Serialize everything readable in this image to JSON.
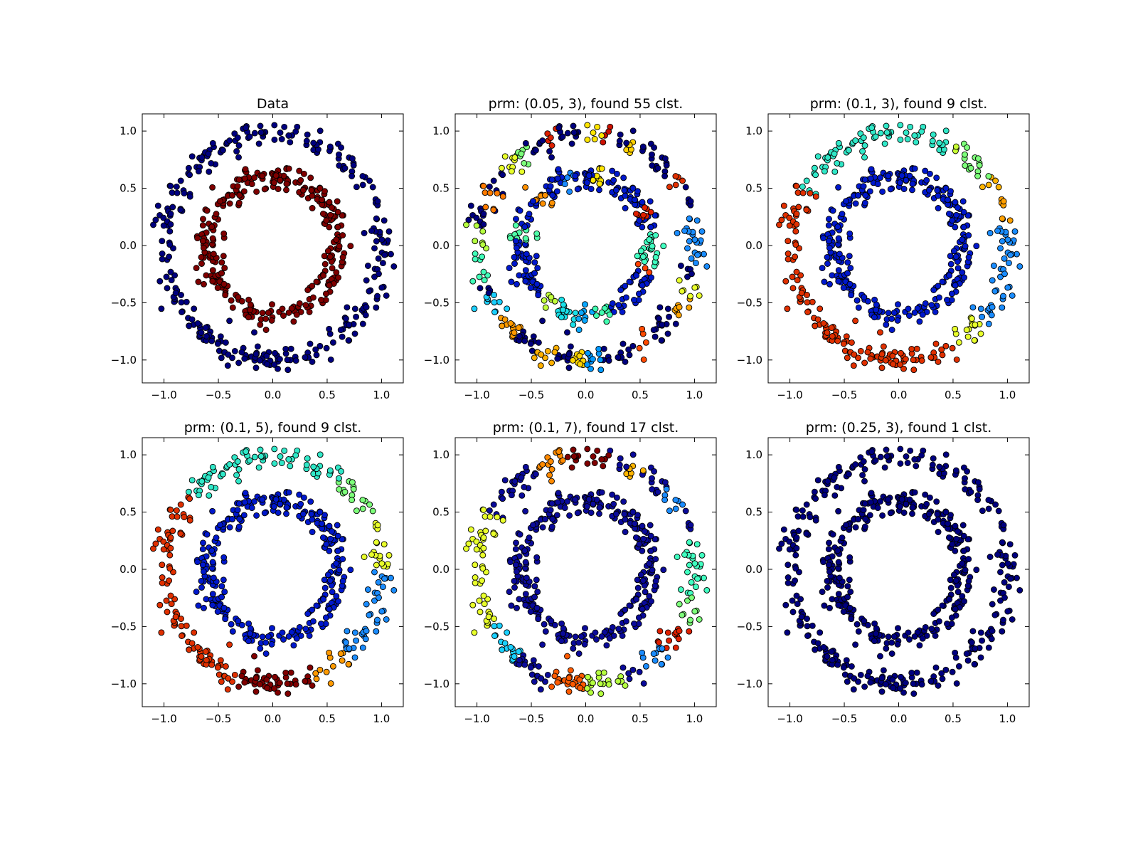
{
  "figure": {
    "dataset": "two concentric noisy circles, 600 points (300 outer ring radius 1.0, 300 inner ring radius 0.6)"
  },
  "chart_data": [
    {
      "type": "scatter",
      "title": "Data",
      "xlim": [
        -1.2,
        1.2
      ],
      "ylim": [
        -1.2,
        1.15
      ],
      "xticks": [
        -1.0,
        -0.5,
        0.0,
        0.5,
        1.0
      ],
      "yticks": [
        -1.0,
        -0.5,
        0.0,
        0.5,
        1.0
      ],
      "xtick_labels": [
        "−1.0",
        "−0.5",
        "0.0",
        "0.5",
        "1.0"
      ],
      "ytick_labels": [
        "−1.0",
        "−0.5",
        "0.0",
        "0.5",
        "1.0"
      ],
      "series": [
        {
          "name": "outer ring",
          "radius": 1.0,
          "n": 300,
          "color": "#00007f",
          "segments": [
            {
              "from_deg": 0,
              "to_deg": 360,
              "color": "#00007f"
            }
          ]
        },
        {
          "name": "inner ring",
          "radius": 0.6,
          "n": 300,
          "color": "#7f0000",
          "segments": [
            {
              "from_deg": 0,
              "to_deg": 360,
              "color": "#7f0000"
            }
          ]
        }
      ]
    },
    {
      "type": "scatter",
      "title": "prm: (0.05, 3), found 55 clst.",
      "xlim": [
        -1.2,
        1.2
      ],
      "ylim": [
        -1.2,
        1.15
      ],
      "xticks": [
        -1.0,
        -0.5,
        0.0,
        0.5,
        1.0
      ],
      "yticks": [
        -1.0,
        -0.5,
        0.0,
        0.5,
        1.0
      ],
      "xtick_labels": [
        "−1.0",
        "−0.5",
        "0.0",
        "0.5",
        "1.0"
      ],
      "ytick_labels": [
        "−1.0",
        "−0.5",
        "0.0",
        "0.5",
        "1.0"
      ],
      "series": [
        {
          "name": "outer ring",
          "radius": 1.0,
          "n": 300,
          "color": "#00007f",
          "segments": [
            {
              "from_deg": 0,
              "to_deg": 14,
              "color": "#1a8cff"
            },
            {
              "from_deg": 14,
              "to_deg": 30,
              "color": "#00007f"
            },
            {
              "from_deg": 30,
              "to_deg": 38,
              "color": "#e03000"
            },
            {
              "from_deg": 38,
              "to_deg": 60,
              "color": "#00007f"
            },
            {
              "from_deg": 60,
              "to_deg": 66,
              "color": "#ffd000"
            },
            {
              "from_deg": 66,
              "to_deg": 74,
              "color": "#00007f"
            },
            {
              "from_deg": 74,
              "to_deg": 80,
              "color": "#cc1000"
            },
            {
              "from_deg": 80,
              "to_deg": 92,
              "color": "#ffe600"
            },
            {
              "from_deg": 92,
              "to_deg": 104,
              "color": "#00007f"
            },
            {
              "from_deg": 104,
              "to_deg": 112,
              "color": "#dd2000"
            },
            {
              "from_deg": 112,
              "to_deg": 122,
              "color": "#00007f"
            },
            {
              "from_deg": 122,
              "to_deg": 130,
              "color": "#7dff7a"
            },
            {
              "from_deg": 130,
              "to_deg": 140,
              "color": "#e8ff2a"
            },
            {
              "from_deg": 140,
              "to_deg": 150,
              "color": "#00007f"
            },
            {
              "from_deg": 150,
              "to_deg": 160,
              "color": "#ff7a00"
            },
            {
              "from_deg": 160,
              "to_deg": 170,
              "color": "#00007f"
            },
            {
              "from_deg": 170,
              "to_deg": 182,
              "color": "#b5ff40"
            },
            {
              "from_deg": 182,
              "to_deg": 198,
              "color": "#40ffb8"
            },
            {
              "from_deg": 198,
              "to_deg": 206,
              "color": "#00007f"
            },
            {
              "from_deg": 206,
              "to_deg": 218,
              "color": "#1ad0ff"
            },
            {
              "from_deg": 218,
              "to_deg": 232,
              "color": "#ff9a00"
            },
            {
              "from_deg": 232,
              "to_deg": 244,
              "color": "#00007f"
            },
            {
              "from_deg": 244,
              "to_deg": 254,
              "color": "#ffb000"
            },
            {
              "from_deg": 254,
              "to_deg": 262,
              "color": "#00007f"
            },
            {
              "from_deg": 262,
              "to_deg": 270,
              "color": "#ffd500"
            },
            {
              "from_deg": 270,
              "to_deg": 278,
              "color": "#0098ff"
            },
            {
              "from_deg": 278,
              "to_deg": 298,
              "color": "#00007f"
            },
            {
              "from_deg": 298,
              "to_deg": 308,
              "color": "#ff4a00"
            },
            {
              "from_deg": 308,
              "to_deg": 324,
              "color": "#00007f"
            },
            {
              "from_deg": 324,
              "to_deg": 334,
              "color": "#ffa500"
            },
            {
              "from_deg": 334,
              "to_deg": 342,
              "color": "#e8ff2a"
            },
            {
              "from_deg": 342,
              "to_deg": 350,
              "color": "#00007f"
            },
            {
              "from_deg": 350,
              "to_deg": 360,
              "color": "#1a8cff"
            }
          ]
        },
        {
          "name": "inner ring",
          "radius": 0.6,
          "n": 300,
          "color": "#0018cc",
          "segments": [
            {
              "from_deg": 0,
              "to_deg": 10,
              "color": "#40ffc0"
            },
            {
              "from_deg": 10,
              "to_deg": 24,
              "color": "#0018cc"
            },
            {
              "from_deg": 24,
              "to_deg": 32,
              "color": "#e02000"
            },
            {
              "from_deg": 32,
              "to_deg": 76,
              "color": "#0018cc"
            },
            {
              "from_deg": 76,
              "to_deg": 84,
              "color": "#ffe600"
            },
            {
              "from_deg": 84,
              "to_deg": 100,
              "color": "#0018cc"
            },
            {
              "from_deg": 100,
              "to_deg": 110,
              "color": "#1a8cff"
            },
            {
              "from_deg": 110,
              "to_deg": 126,
              "color": "#0018cc"
            },
            {
              "from_deg": 126,
              "to_deg": 140,
              "color": "#ff9000"
            },
            {
              "from_deg": 140,
              "to_deg": 164,
              "color": "#0018cc"
            },
            {
              "from_deg": 164,
              "to_deg": 176,
              "color": "#50ffa8"
            },
            {
              "from_deg": 176,
              "to_deg": 226,
              "color": "#0018cc"
            },
            {
              "from_deg": 226,
              "to_deg": 240,
              "color": "#c0ff3a"
            },
            {
              "from_deg": 240,
              "to_deg": 262,
              "color": "#1ae0e8"
            },
            {
              "from_deg": 262,
              "to_deg": 278,
              "color": "#0aa8ff"
            },
            {
              "from_deg": 278,
              "to_deg": 292,
              "color": "#40ffb0"
            },
            {
              "from_deg": 292,
              "to_deg": 336,
              "color": "#0018cc"
            },
            {
              "from_deg": 336,
              "to_deg": 344,
              "color": "#ff4000"
            },
            {
              "from_deg": 344,
              "to_deg": 360,
              "color": "#40ffc0"
            }
          ]
        }
      ]
    },
    {
      "type": "scatter",
      "title": "prm: (0.1, 3), found 9 clst.",
      "xlim": [
        -1.2,
        1.2
      ],
      "ylim": [
        -1.2,
        1.15
      ],
      "xticks": [
        -1.0,
        -0.5,
        0.0,
        0.5,
        1.0
      ],
      "yticks": [
        -1.0,
        -0.5,
        0.0,
        0.5,
        1.0
      ],
      "xtick_labels": [
        "−1.0",
        "−0.5",
        "0.0",
        "0.5",
        "1.0"
      ],
      "ytick_labels": [
        "−1.0",
        "−0.5",
        "0.0",
        "0.5",
        "1.0"
      ],
      "series": [
        {
          "name": "outer ring",
          "radius": 1.0,
          "n": 300,
          "color": "#1a8cff",
          "segments": [
            {
              "from_deg": 0,
              "to_deg": 12,
              "color": "#1a8cff"
            },
            {
              "from_deg": 12,
              "to_deg": 24,
              "color": "#ffa000"
            },
            {
              "from_deg": 24,
              "to_deg": 36,
              "color": "#ffb400"
            },
            {
              "from_deg": 36,
              "to_deg": 56,
              "color": "#7dff7a"
            },
            {
              "from_deg": 56,
              "to_deg": 62,
              "color": "#c8ff34"
            },
            {
              "from_deg": 62,
              "to_deg": 150,
              "color": "#30e8c8"
            },
            {
              "from_deg": 150,
              "to_deg": 302,
              "color": "#e03000"
            },
            {
              "from_deg": 302,
              "to_deg": 318,
              "color": "#e8ff2a"
            },
            {
              "from_deg": 318,
              "to_deg": 360,
              "color": "#1a8cff"
            }
          ]
        },
        {
          "name": "inner ring",
          "radius": 0.6,
          "n": 300,
          "color": "#0018cc",
          "segments": [
            {
              "from_deg": 0,
              "to_deg": 360,
              "color": "#0018cc"
            }
          ]
        }
      ]
    },
    {
      "type": "scatter",
      "title": "prm: (0.1, 5), found 9 clst.",
      "xlim": [
        -1.2,
        1.2
      ],
      "ylim": [
        -1.2,
        1.15
      ],
      "xticks": [
        -1.0,
        -0.5,
        0.0,
        0.5,
        1.0
      ],
      "yticks": [
        -1.0,
        -0.5,
        0.0,
        0.5,
        1.0
      ],
      "xtick_labels": [
        "−1.0",
        "−0.5",
        "0.0",
        "0.5",
        "1.0"
      ],
      "ytick_labels": [
        "−1.0",
        "−0.5",
        "0.0",
        "0.5",
        "1.0"
      ],
      "series": [
        {
          "name": "outer ring",
          "radius": 1.0,
          "n": 300,
          "color": "#1a8cff",
          "segments": [
            {
              "from_deg": 0,
              "to_deg": 16,
              "color": "#e8ff2a"
            },
            {
              "from_deg": 16,
              "to_deg": 28,
              "color": "#e8ff2a"
            },
            {
              "from_deg": 28,
              "to_deg": 52,
              "color": "#7dff7a"
            },
            {
              "from_deg": 52,
              "to_deg": 140,
              "color": "#30e8c8"
            },
            {
              "from_deg": 140,
              "to_deg": 250,
              "color": "#e03000"
            },
            {
              "from_deg": 250,
              "to_deg": 292,
              "color": "#800000"
            },
            {
              "from_deg": 292,
              "to_deg": 312,
              "color": "#ff9a00"
            },
            {
              "from_deg": 312,
              "to_deg": 360,
              "color": "#1a8cff"
            }
          ]
        },
        {
          "name": "inner ring",
          "radius": 0.6,
          "n": 300,
          "color": "#0018cc",
          "segments": [
            {
              "from_deg": 0,
              "to_deg": 360,
              "color": "#0018cc"
            }
          ]
        }
      ]
    },
    {
      "type": "scatter",
      "title": "prm: (0.1, 7), found 17 clst.",
      "xlim": [
        -1.2,
        1.2
      ],
      "ylim": [
        -1.2,
        1.15
      ],
      "xticks": [
        -1.0,
        -0.5,
        0.0,
        0.5,
        1.0
      ],
      "yticks": [
        -1.0,
        -0.5,
        0.0,
        0.5,
        1.0
      ],
      "xtick_labels": [
        "−1.0",
        "−0.5",
        "0.0",
        "0.5",
        "1.0"
      ],
      "ytick_labels": [
        "−1.0",
        "−0.5",
        "0.0",
        "0.5",
        "1.0"
      ],
      "series": [
        {
          "name": "outer ring",
          "radius": 1.0,
          "n": 300,
          "color": "#0a0a9a",
          "segments": [
            {
              "from_deg": 0,
              "to_deg": 16,
              "color": "#40ffc0"
            },
            {
              "from_deg": 16,
              "to_deg": 30,
              "color": "#0a0a9a"
            },
            {
              "from_deg": 30,
              "to_deg": 44,
              "color": "#1a8cff"
            },
            {
              "from_deg": 44,
              "to_deg": 58,
              "color": "#0a0a9a"
            },
            {
              "from_deg": 58,
              "to_deg": 66,
              "color": "#ffb400"
            },
            {
              "from_deg": 66,
              "to_deg": 78,
              "color": "#0a0a9a"
            },
            {
              "from_deg": 78,
              "to_deg": 100,
              "color": "#800000"
            },
            {
              "from_deg": 100,
              "to_deg": 118,
              "color": "#ff8a00"
            },
            {
              "from_deg": 118,
              "to_deg": 150,
              "color": "#0a0a9a"
            },
            {
              "from_deg": 150,
              "to_deg": 210,
              "color": "#e8ff2a"
            },
            {
              "from_deg": 210,
              "to_deg": 232,
              "color": "#1ad0ff"
            },
            {
              "from_deg": 232,
              "to_deg": 252,
              "color": "#0a0a9a"
            },
            {
              "from_deg": 252,
              "to_deg": 270,
              "color": "#ff5a00"
            },
            {
              "from_deg": 270,
              "to_deg": 290,
              "color": "#b5ff40"
            },
            {
              "from_deg": 290,
              "to_deg": 302,
              "color": "#0a0a9a"
            },
            {
              "from_deg": 302,
              "to_deg": 316,
              "color": "#1a8cff"
            },
            {
              "from_deg": 316,
              "to_deg": 332,
              "color": "#e02000"
            },
            {
              "from_deg": 332,
              "to_deg": 346,
              "color": "#7dff7a"
            },
            {
              "from_deg": 346,
              "to_deg": 360,
              "color": "#40ffc0"
            }
          ]
        },
        {
          "name": "inner ring",
          "radius": 0.6,
          "n": 300,
          "color": "#0a0a9a",
          "segments": [
            {
              "from_deg": 0,
              "to_deg": 360,
              "color": "#0a0a9a"
            }
          ]
        }
      ]
    },
    {
      "type": "scatter",
      "title": "prm: (0.25, 3), found 1 clst.",
      "xlim": [
        -1.2,
        1.2
      ],
      "ylim": [
        -1.2,
        1.15
      ],
      "xticks": [
        -1.0,
        -0.5,
        0.0,
        0.5,
        1.0
      ],
      "yticks": [
        -1.0,
        -0.5,
        0.0,
        0.5,
        1.0
      ],
      "xtick_labels": [
        "−1.0",
        "−0.5",
        "0.0",
        "0.5",
        "1.0"
      ],
      "ytick_labels": [
        "−1.0",
        "−0.5",
        "0.0",
        "0.5",
        "1.0"
      ],
      "series": [
        {
          "name": "outer ring",
          "radius": 1.0,
          "n": 300,
          "color": "#00007f",
          "segments": [
            {
              "from_deg": 0,
              "to_deg": 360,
              "color": "#00007f"
            }
          ]
        },
        {
          "name": "inner ring",
          "radius": 0.6,
          "n": 300,
          "color": "#00007f",
          "segments": [
            {
              "from_deg": 0,
              "to_deg": 360,
              "color": "#00007f"
            }
          ]
        }
      ]
    }
  ]
}
